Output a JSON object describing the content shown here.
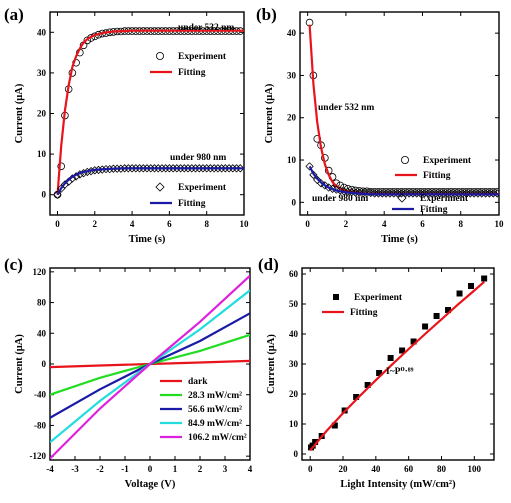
{
  "chart_data": [
    {
      "panel": "(a)",
      "type": "line",
      "xlabel": "Time (s)",
      "ylabel": "Current (μA)",
      "xlim": [
        -0.4,
        10
      ],
      "ylim": [
        -5,
        45
      ],
      "xticks": [
        0,
        2,
        4,
        6,
        8,
        10
      ],
      "yticks": [
        0,
        10,
        20,
        30,
        40
      ],
      "annotations": [
        "under 532 nm",
        "under 980 nm"
      ],
      "legends": [
        [
          "Experiment",
          "Fitting"
        ],
        [
          "Experiment",
          "Fitting"
        ]
      ],
      "series": [
        {
          "name": "Experiment",
          "marker": "circle",
          "color": "#d00000",
          "x": [
            0,
            0.2,
            0.4,
            0.6,
            0.8,
            1.0,
            1.2,
            1.4,
            1.6,
            1.8,
            2.0,
            2.2,
            2.4,
            2.6,
            2.8,
            3.0,
            3.2,
            3.4,
            3.6,
            3.8,
            4.0,
            4.2,
            4.4,
            4.6,
            4.8,
            5.0,
            5.2,
            5.4,
            5.6,
            5.8,
            6.0,
            6.2,
            6.4,
            6.6,
            6.8,
            7.0,
            7.2,
            7.4,
            7.6,
            7.8,
            8.0,
            8.2,
            8.4,
            8.6,
            8.8,
            9.0,
            9.2,
            9.4,
            9.6,
            9.8
          ],
          "y": [
            0,
            7,
            19.5,
            26,
            30,
            32.5,
            35,
            36.8,
            38,
            38.6,
            39,
            39.4,
            39.7,
            39.8,
            40,
            40.1,
            40.2,
            40.2,
            40.3,
            40.3,
            40.3,
            40.3,
            40.3,
            40.3,
            40.3,
            40.3,
            40.3,
            40.3,
            40.3,
            40.3,
            40.3,
            40.3,
            40.3,
            40.3,
            40.3,
            40.3,
            40.3,
            40.3,
            40.3,
            40.3,
            40.3,
            40.3,
            40.3,
            40.3,
            40.3,
            40.3,
            40.3,
            40.3,
            40.3,
            40.3
          ]
        },
        {
          "name": "Fitting",
          "color": "#e8141b",
          "x": [
            0,
            0.2,
            0.4,
            0.6,
            0.8,
            1.0,
            1.2,
            1.4,
            1.6,
            1.8,
            2.0,
            2.5,
            3.0,
            3.5,
            4.0,
            5.0,
            6.0,
            7.0,
            8.0,
            9.0,
            10.0
          ],
          "y": [
            0,
            12.0,
            20.7,
            27.0,
            31.5,
            34.1,
            36.0,
            37.5,
            38.3,
            38.9,
            39.3,
            39.9,
            40.2,
            40.3,
            40.4,
            40.4,
            40.4,
            40.4,
            40.4,
            40.4,
            40.4
          ]
        },
        {
          "name": "Experiment",
          "marker": "diamond",
          "color": "#1a1aa6",
          "x": [
            0,
            0.2,
            0.4,
            0.6,
            0.8,
            1.0,
            1.2,
            1.4,
            1.6,
            1.8,
            2.0,
            2.2,
            2.4,
            2.6,
            2.8,
            3.0,
            3.2,
            3.4,
            3.6,
            3.8,
            4.0,
            4.2,
            4.4,
            4.6,
            4.8,
            5.0,
            5.2,
            5.4,
            5.6,
            5.8,
            6.0,
            6.2,
            6.4,
            6.6,
            6.8,
            7.0,
            7.2,
            7.4,
            7.6,
            7.8,
            8.0,
            8.2,
            8.4,
            8.6,
            8.8,
            9.0,
            9.2,
            9.4,
            9.6,
            9.8
          ],
          "y": [
            0,
            1.5,
            2.5,
            3.2,
            4.0,
            4.5,
            5.0,
            5.3,
            5.6,
            5.8,
            6.0,
            6.1,
            6.2,
            6.3,
            6.3,
            6.4,
            6.4,
            6.4,
            6.5,
            6.5,
            6.5,
            6.5,
            6.5,
            6.5,
            6.5,
            6.5,
            6.5,
            6.5,
            6.5,
            6.5,
            6.5,
            6.5,
            6.5,
            6.5,
            6.5,
            6.5,
            6.5,
            6.5,
            6.5,
            6.5,
            6.5,
            6.5,
            6.5,
            6.5,
            6.5,
            6.5,
            6.5,
            6.5,
            6.5,
            6.5
          ]
        },
        {
          "name": "Fitting",
          "color": "#1a1aa6",
          "x": [
            0,
            0.2,
            0.4,
            0.6,
            0.8,
            1.0,
            1.2,
            1.4,
            1.6,
            1.8,
            2.0,
            2.5,
            3.0,
            3.5,
            4.0,
            5.0,
            6.0,
            7.0,
            8.0,
            9.0,
            10.0
          ],
          "y": [
            0,
            1.6,
            2.8,
            3.7,
            4.4,
            4.9,
            5.3,
            5.6,
            5.8,
            6.0,
            6.1,
            6.3,
            6.4,
            6.5,
            6.5,
            6.5,
            6.5,
            6.5,
            6.5,
            6.5,
            6.5
          ]
        }
      ]
    },
    {
      "panel": "(b)",
      "type": "line",
      "xlabel": "Time (s)",
      "ylabel": "Current (μA)",
      "xlim": [
        -0.4,
        10
      ],
      "ylim": [
        -3,
        45
      ],
      "xticks": [
        0,
        2,
        4,
        6,
        8,
        10
      ],
      "yticks": [
        0,
        10,
        20,
        30,
        40
      ],
      "annotations": [
        "under 532 nm",
        "under 980 nm"
      ],
      "legends": [
        [
          "Experiment",
          "Fitting"
        ],
        [
          "Experiment",
          "Fitting"
        ]
      ],
      "series": [
        {
          "name": "Experiment",
          "marker": "circle",
          "color": "#d00000",
          "x": [
            0.1,
            0.3,
            0.5,
            0.7,
            0.9,
            1.1,
            1.3,
            1.5,
            1.7,
            1.9,
            2.1,
            2.3,
            2.5,
            2.7,
            2.9,
            3.1,
            3.3,
            3.5,
            3.7,
            3.9,
            4.1,
            4.3,
            4.5,
            4.7,
            4.9,
            5.1,
            5.3,
            5.5,
            5.7,
            5.9,
            6.1,
            6.3,
            6.5,
            6.7,
            6.9,
            7.1,
            7.3,
            7.5,
            7.7,
            7.9,
            8.1,
            8.3,
            8.5,
            8.7,
            8.9,
            9.1,
            9.3,
            9.5,
            9.7,
            9.9
          ],
          "y": [
            42.5,
            30,
            15,
            13.5,
            10.5,
            7.5,
            6.0,
            4.5,
            4.0,
            3.5,
            3.2,
            3.0,
            2.8,
            2.7,
            2.6,
            2.6,
            2.5,
            2.5,
            2.5,
            2.5,
            2.5,
            2.5,
            2.5,
            2.5,
            2.5,
            2.5,
            2.5,
            2.5,
            2.5,
            2.5,
            2.5,
            2.5,
            2.5,
            2.5,
            2.5,
            2.5,
            2.5,
            2.5,
            2.5,
            2.5,
            2.5,
            2.5,
            2.5,
            2.5,
            2.5,
            2.5,
            2.5,
            2.5,
            2.5,
            2.5
          ]
        },
        {
          "name": "Fitting",
          "color": "#e8141b",
          "x": [
            0.1,
            0.3,
            0.5,
            0.7,
            0.9,
            1.1,
            1.3,
            1.5,
            1.8,
            2.1,
            2.5,
            3.0,
            3.5,
            4.0,
            5.0,
            6.0,
            7.0,
            8.0,
            9.0,
            10.0
          ],
          "y": [
            42.0,
            28.0,
            19.0,
            13.0,
            9.0,
            6.5,
            4.8,
            3.8,
            3.0,
            2.6,
            2.3,
            2.1,
            2.0,
            2.0,
            2.0,
            2.0,
            2.0,
            2.0,
            2.0,
            2.0
          ]
        },
        {
          "name": "Experiment",
          "marker": "diamond",
          "color": "#1a1aa6",
          "x": [
            0.1,
            0.3,
            0.5,
            0.7,
            0.9,
            1.1,
            1.3,
            1.5,
            1.7,
            1.9,
            2.1,
            2.3,
            2.5,
            2.7,
            2.9,
            3.1,
            3.3,
            3.5,
            3.7,
            3.9,
            4.1,
            4.3,
            4.5,
            4.7,
            4.9,
            5.1,
            5.3,
            5.5,
            5.7,
            5.9,
            6.1,
            6.3,
            6.5,
            6.7,
            6.9,
            7.1,
            7.3,
            7.5,
            7.7,
            7.9,
            8.1,
            8.3,
            8.5,
            8.7,
            8.9,
            9.1,
            9.3,
            9.5,
            9.7,
            9.9
          ],
          "y": [
            8.5,
            6.5,
            5.3,
            4.5,
            4.0,
            3.5,
            3.2,
            3.0,
            2.8,
            2.6,
            2.5,
            2.4,
            2.3,
            2.3,
            2.2,
            2.2,
            2.2,
            2.1,
            2.1,
            2.1,
            2.1,
            2.1,
            2.1,
            2.1,
            2.1,
            2.1,
            2.1,
            2.1,
            2.1,
            2.1,
            2.1,
            2.1,
            2.1,
            2.1,
            2.1,
            2.1,
            2.1,
            2.1,
            2.1,
            2.1,
            2.1,
            2.1,
            2.1,
            2.1,
            2.1,
            2.1,
            2.1,
            2.1,
            2.1,
            2.1
          ]
        },
        {
          "name": "Fitting",
          "color": "#1a1aa6",
          "x": [
            0.1,
            0.3,
            0.5,
            0.7,
            0.9,
            1.1,
            1.3,
            1.5,
            1.8,
            2.1,
            2.5,
            3.0,
            3.5,
            4.0,
            5.0,
            6.0,
            7.0,
            8.0,
            9.0,
            10.0
          ],
          "y": [
            8.5,
            6.8,
            5.6,
            4.7,
            4.0,
            3.5,
            3.1,
            2.8,
            2.5,
            2.3,
            2.1,
            2.0,
            1.9,
            1.9,
            1.9,
            1.9,
            1.9,
            1.9,
            1.9,
            1.9
          ]
        }
      ]
    },
    {
      "panel": "(c)",
      "type": "line",
      "xlabel": "Voltage (V)",
      "ylabel": "Current (μA)",
      "xlim": [
        -4,
        4
      ],
      "ylim": [
        -125,
        125
      ],
      "xticks": [
        -4,
        -3,
        -2,
        -1,
        0,
        1,
        2,
        3,
        4
      ],
      "yticks": [
        -120,
        -80,
        -40,
        0,
        40,
        80,
        120
      ],
      "series": [
        {
          "name": "dark",
          "color": "#e8141b",
          "x": [
            -4,
            -2,
            0,
            2,
            4
          ],
          "y": [
            -4,
            -2,
            0,
            2,
            4
          ]
        },
        {
          "name": "28.3 mW/cm²",
          "color": "#22dd22",
          "x": [
            -4,
            -2,
            0,
            2,
            4
          ],
          "y": [
            -40,
            -18,
            0,
            17,
            38
          ]
        },
        {
          "name": "56.6 mW/cm²",
          "color": "#1a1aa6",
          "x": [
            -4,
            -2,
            0,
            2,
            4
          ],
          "y": [
            -70,
            -33,
            0,
            30,
            66
          ]
        },
        {
          "name": "84.9 mW/cm²",
          "color": "#22dddd",
          "x": [
            -4,
            -2,
            0,
            2,
            4
          ],
          "y": [
            -102,
            -48,
            0,
            45,
            96
          ]
        },
        {
          "name": "106.2 mW/cm²",
          "color": "#dd22dd",
          "x": [
            -4,
            -2,
            0,
            2,
            4
          ],
          "y": [
            -123,
            -58,
            0,
            55,
            115
          ]
        }
      ]
    },
    {
      "panel": "(d)",
      "type": "scatter",
      "xlabel": "Light Intensity (mW/cm²)",
      "ylabel": "Current (μA)",
      "xlim": [
        -5,
        112
      ],
      "ylim": [
        -2,
        62
      ],
      "xticks": [
        0,
        20,
        40,
        60,
        80,
        100
      ],
      "yticks": [
        0,
        10,
        20,
        30,
        40,
        50,
        60
      ],
      "annotation": "I~P⁰·⁸⁹",
      "series": [
        {
          "name": "Experiment",
          "marker": "square",
          "color": "#000000",
          "x": [
            0.5,
            1.5,
            3,
            7,
            15,
            21,
            28,
            35,
            42,
            49,
            56,
            63,
            70,
            77,
            84,
            91,
            98,
            106
          ],
          "y": [
            2.2,
            2.8,
            4,
            6,
            9.5,
            14.5,
            19,
            23,
            27,
            32,
            34.5,
            37.5,
            42.5,
            46,
            48,
            53.5,
            56,
            58.5
          ]
        },
        {
          "name": "Fitting",
          "color": "#e8141b",
          "x": [
            0,
            10,
            20,
            30,
            40,
            50,
            60,
            70,
            80,
            90,
            100,
            106
          ],
          "y": [
            1.2,
            7.7,
            13.6,
            19.2,
            24.6,
            29.9,
            35.0,
            40.0,
            44.9,
            49.8,
            54.5,
            57.4
          ]
        }
      ]
    }
  ]
}
